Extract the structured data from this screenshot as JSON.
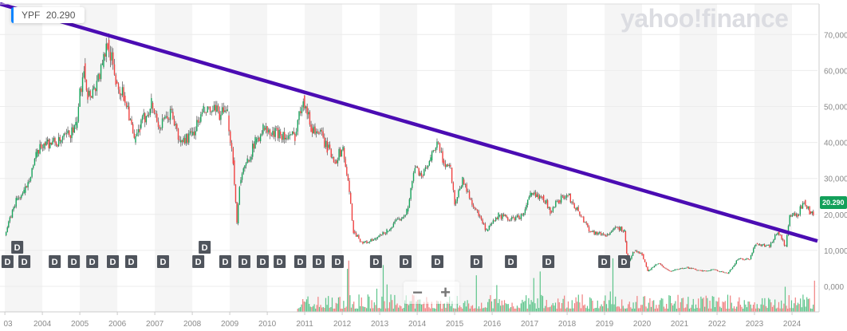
{
  "legend": {
    "symbol": "YPF",
    "value": "20.290",
    "accent": "#0a84ff"
  },
  "watermark": "yahoo!finance",
  "zoom_controls": {
    "minus": "−",
    "plus": "+"
  },
  "last_price_label": "20.290",
  "colors": {
    "up": "#17a35b",
    "down": "#f0403f",
    "trendline": "#4b0cb3",
    "last_label_bg": "#13a05a"
  },
  "chart_data": {
    "type": "candlestick",
    "ylim": [
      -7,
      78
    ],
    "xlim": [
      2002.87,
      2024.68
    ],
    "y_ticks": [
      "70,000",
      "60,000",
      "50,000",
      "40,000",
      "30,000",
      "20,000",
      "10,000",
      "0,000"
    ],
    "y_tick_values": [
      70,
      60,
      50,
      40,
      30,
      20,
      10,
      0
    ],
    "x_ticks": [
      "03",
      "2004",
      "2005",
      "2006",
      "2007",
      "2008",
      "2009",
      "2010",
      "2011",
      "2012",
      "2013",
      "2014",
      "2015",
      "2016",
      "2017",
      "2018",
      "2019",
      "2020",
      "2021",
      "2022",
      "2023",
      "2024"
    ],
    "x_tick_values": [
      2003,
      2004,
      2005,
      2006,
      2007,
      2008,
      2009,
      2010,
      2011,
      2012,
      2013,
      2014,
      2015,
      2016,
      2017,
      2018,
      2019,
      2020,
      2021,
      2022,
      2023,
      2024
    ],
    "grid": true,
    "price": [
      [
        2003.0,
        14.2
      ],
      [
        2003.3,
        24
      ],
      [
        2003.51,
        26
      ],
      [
        2003.83,
        36
      ],
      [
        2004.04,
        40
      ],
      [
        2004.47,
        40
      ],
      [
        2004.89,
        44
      ],
      [
        2005.11,
        62
      ],
      [
        2005.21,
        53
      ],
      [
        2005.38,
        55
      ],
      [
        2005.6,
        61
      ],
      [
        2005.74,
        68.5
      ],
      [
        2005.96,
        57
      ],
      [
        2006.17,
        53
      ],
      [
        2006.28,
        50
      ],
      [
        2006.45,
        40
      ],
      [
        2006.6,
        44
      ],
      [
        2006.91,
        51
      ],
      [
        2007.13,
        44
      ],
      [
        2007.45,
        48.5
      ],
      [
        2007.66,
        40
      ],
      [
        2007.98,
        42
      ],
      [
        2008.3,
        48.5
      ],
      [
        2008.62,
        48.5
      ],
      [
        2008.94,
        47.5
      ],
      [
        2009.09,
        35
      ],
      [
        2009.19,
        17.5
      ],
      [
        2009.26,
        28.6
      ],
      [
        2009.47,
        35
      ],
      [
        2009.68,
        40
      ],
      [
        2009.89,
        44
      ],
      [
        2010.11,
        42
      ],
      [
        2010.32,
        43
      ],
      [
        2010.53,
        41
      ],
      [
        2010.74,
        42
      ],
      [
        2010.96,
        53
      ],
      [
        2011.17,
        44
      ],
      [
        2011.38,
        43
      ],
      [
        2011.6,
        38.5
      ],
      [
        2011.81,
        35
      ],
      [
        2012.02,
        38.5
      ],
      [
        2012.19,
        26
      ],
      [
        2012.3,
        15.3
      ],
      [
        2012.55,
        12
      ],
      [
        2012.87,
        13
      ],
      [
        2013.19,
        15.3
      ],
      [
        2013.51,
        18.6
      ],
      [
        2013.72,
        20.8
      ],
      [
        2013.94,
        33
      ],
      [
        2014.15,
        30.8
      ],
      [
        2014.36,
        35
      ],
      [
        2014.53,
        40
      ],
      [
        2014.68,
        35
      ],
      [
        2014.89,
        33
      ],
      [
        2015.0,
        23
      ],
      [
        2015.21,
        29.7
      ],
      [
        2015.43,
        24
      ],
      [
        2015.64,
        19.7
      ],
      [
        2015.85,
        15.3
      ],
      [
        2016.17,
        19.7
      ],
      [
        2016.49,
        18.6
      ],
      [
        2016.81,
        19.7
      ],
      [
        2017.02,
        25.3
      ],
      [
        2017.34,
        25.3
      ],
      [
        2017.55,
        20.8
      ],
      [
        2017.77,
        24
      ],
      [
        2018.02,
        25.3
      ],
      [
        2018.3,
        20.8
      ],
      [
        2018.62,
        15.3
      ],
      [
        2019.04,
        14.2
      ],
      [
        2019.36,
        16.4
      ],
      [
        2019.53,
        15.3
      ],
      [
        2019.62,
        6.4
      ],
      [
        2019.79,
        9.8
      ],
      [
        2020.0,
        9
      ],
      [
        2020.15,
        4.2
      ],
      [
        2020.43,
        6.4
      ],
      [
        2020.74,
        4.2
      ],
      [
        2021.17,
        5.3
      ],
      [
        2021.6,
        4.2
      ],
      [
        2021.91,
        4.7
      ],
      [
        2022.28,
        3.5
      ],
      [
        2022.55,
        7.5
      ],
      [
        2022.87,
        7.5
      ],
      [
        2023.04,
        12
      ],
      [
        2023.4,
        11
      ],
      [
        2023.62,
        15.3
      ],
      [
        2023.83,
        11
      ],
      [
        2023.94,
        19.7
      ],
      [
        2024.15,
        19.7
      ],
      [
        2024.32,
        24
      ],
      [
        2024.47,
        20.8
      ],
      [
        2024.57,
        20.29
      ]
    ],
    "trendline": [
      [
        2002.87,
        78.5
      ],
      [
        2024.68,
        12.6
      ]
    ],
    "dividends": {
      "label": "D",
      "dates": [
        2003.06,
        2003.32,
        2003.51,
        2004.32,
        2004.83,
        2005.32,
        2005.87,
        2006.36,
        2007.21,
        2008.15,
        2008.32,
        2008.87,
        2009.38,
        2009.87,
        2010.32,
        2010.87,
        2011.36,
        2011.87,
        2012.89,
        2013.68,
        2014.53,
        2015.57,
        2016.49,
        2017.49,
        2018.98,
        2019.51
      ]
    },
    "volume_start": 2010.8
  }
}
